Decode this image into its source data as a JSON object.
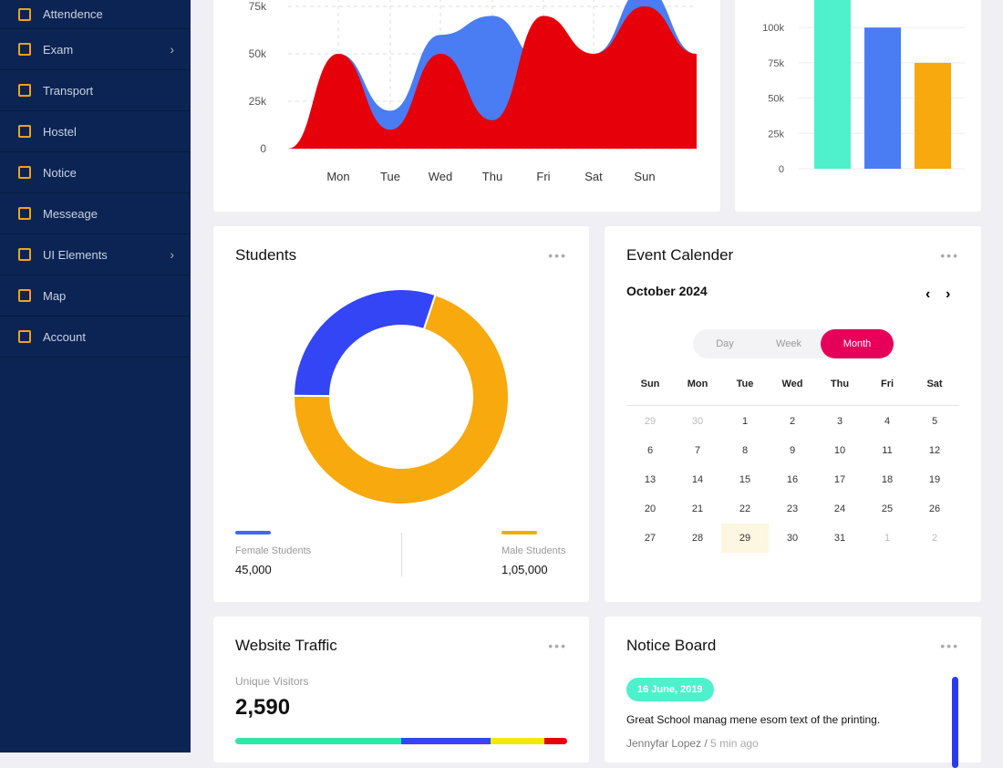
{
  "sidebar": {
    "items": [
      {
        "label": "Attendence",
        "icon": "attendance-icon"
      },
      {
        "label": "Exam",
        "icon": "exam-icon",
        "chevron": true
      },
      {
        "label": "Transport",
        "icon": "bus-icon"
      },
      {
        "label": "Hostel",
        "icon": "bed-icon"
      },
      {
        "label": "Notice",
        "icon": "notice-icon"
      },
      {
        "label": "Messeage",
        "icon": "message-icon"
      },
      {
        "label": "UI Elements",
        "icon": "grid-icon",
        "chevron": true
      },
      {
        "label": "Map",
        "icon": "map-icon"
      },
      {
        "label": "Account",
        "icon": "gear-icon"
      }
    ]
  },
  "chart_data": [
    {
      "type": "area",
      "categories": [
        "Mon",
        "Tue",
        "Wed",
        "Thu",
        "Fri",
        "Sat",
        "Sun"
      ],
      "yticks": [
        "0",
        "25k",
        "50k",
        "75k"
      ],
      "ylim": [
        0,
        75000
      ],
      "series": [
        {
          "name": "blue",
          "color": "#4a7cf3",
          "values": [
            50000,
            20000,
            60000,
            70000,
            45000,
            50000,
            85000
          ]
        },
        {
          "name": "red",
          "color": "#e5000a",
          "values": [
            50000,
            10000,
            50000,
            15000,
            70000,
            50000,
            75000
          ]
        }
      ]
    },
    {
      "type": "bar",
      "yticks": [
        "0",
        "25k",
        "50k",
        "75k",
        "100k"
      ],
      "ylim": [
        0,
        125000
      ],
      "values": [
        130000,
        100000,
        75000
      ],
      "colors": [
        "#4ff0cc",
        "#4a7cf3",
        "#f7a90e"
      ]
    },
    {
      "type": "pie",
      "title": "Students",
      "slices": [
        {
          "label": "Female Students",
          "value": 45000,
          "display": "45,000",
          "color": "#3345f5"
        },
        {
          "label": "Male Students",
          "value": 105000,
          "display": "1,05,000",
          "color": "#f7a90e"
        }
      ]
    }
  ],
  "students": {
    "title": "Students"
  },
  "calendar": {
    "title": "Event Calender",
    "month": "October 2024",
    "views": [
      "Day",
      "Week",
      "Month"
    ],
    "active_view": "Month",
    "days": [
      "Sun",
      "Mon",
      "Tue",
      "Wed",
      "Thu",
      "Fri",
      "Sat"
    ],
    "dates": [
      "29",
      "30",
      "1",
      "2",
      "3",
      "4",
      "5",
      "6",
      "7",
      "8",
      "9",
      "10",
      "11",
      "12",
      "13",
      "14",
      "15",
      "16",
      "17",
      "18",
      "19",
      "20",
      "21",
      "22",
      "23",
      "24",
      "25",
      "26",
      "27",
      "28",
      "29",
      "30",
      "31",
      "1",
      "2"
    ]
  },
  "traffic": {
    "title": "Website Traffic",
    "label": "Unique Visitors",
    "value": "2,590",
    "segments": [
      {
        "pct": 50,
        "color": "#2ee8a8"
      },
      {
        "pct": 27,
        "color": "#3345f5"
      },
      {
        "pct": 16,
        "color": "#f5e70b"
      },
      {
        "pct": 7,
        "color": "#e5000a"
      }
    ]
  },
  "notice": {
    "title": "Notice Board",
    "date": "16 June, 2019",
    "text": "Great School manag mene esom text of the printing.",
    "author": "Jennyfar Lopez",
    "time": "5 min ago"
  }
}
